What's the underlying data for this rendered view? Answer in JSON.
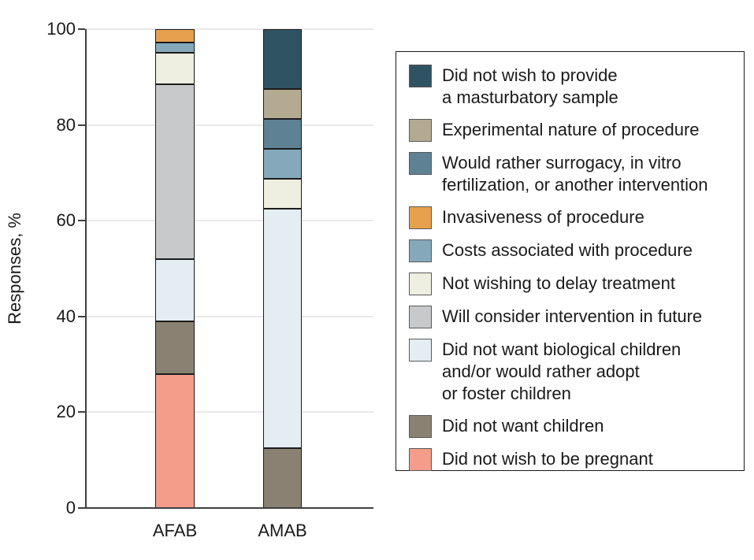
{
  "chart_data": {
    "type": "bar",
    "stacked": true,
    "categories": [
      "AFAB",
      "AMAB"
    ],
    "ylabel": "Responses, %",
    "ylim": [
      0,
      100
    ],
    "yticks": [
      0,
      20,
      40,
      60,
      80,
      100
    ],
    "grid": "horizontal",
    "legend_position": "right",
    "series": [
      {
        "name": "Did not wish to provide a masturbatory sample",
        "lines": [
          "Did not wish to provide",
          "a masturbatory sample"
        ],
        "color": "#2f5363",
        "values": [
          0,
          12.5
        ]
      },
      {
        "name": "Experimental nature of procedure",
        "lines": [
          "Experimental nature of procedure"
        ],
        "color": "#b4aa92",
        "values": [
          0,
          6.25
        ]
      },
      {
        "name": "Would rather surrogacy, in vitro fertilization, or another intervention",
        "lines": [
          "Would rather surrogacy, in vitro",
          "fertilization, or another intervention"
        ],
        "color": "#5e8194",
        "values": [
          0,
          6.25
        ]
      },
      {
        "name": "Invasiveness of procedure",
        "lines": [
          "Invasiveness of procedure"
        ],
        "color": "#e6a04e",
        "values": [
          2.8,
          0
        ]
      },
      {
        "name": "Costs associated with procedure",
        "lines": [
          "Costs associated with procedure"
        ],
        "color": "#85a9bb",
        "values": [
          2.2,
          6.25
        ]
      },
      {
        "name": "Not wishing to delay treatment",
        "lines": [
          "Not wishing to delay treatment"
        ],
        "color": "#eeeee1",
        "values": [
          6.5,
          6.25
        ]
      },
      {
        "name": "Will consider intervention in future",
        "lines": [
          "Will consider intervention in future"
        ],
        "color": "#c8c9cb",
        "values": [
          36.5,
          0
        ]
      },
      {
        "name": "Did not want biological children and/or would rather adopt or foster children",
        "lines": [
          "Did not want biological children",
          "and/or would rather adopt",
          "or foster children"
        ],
        "color": "#e3edf2",
        "values": [
          13,
          50
        ]
      },
      {
        "name": "Did not want children",
        "lines": [
          "Did not want children"
        ],
        "color": "#8a8172",
        "values": [
          11,
          12.5
        ]
      },
      {
        "name": "Did not wish to be pregnant",
        "lines": [
          "Did not wish to be pregnant"
        ],
        "color": "#f39d8a",
        "values": [
          28,
          0
        ]
      }
    ]
  }
}
